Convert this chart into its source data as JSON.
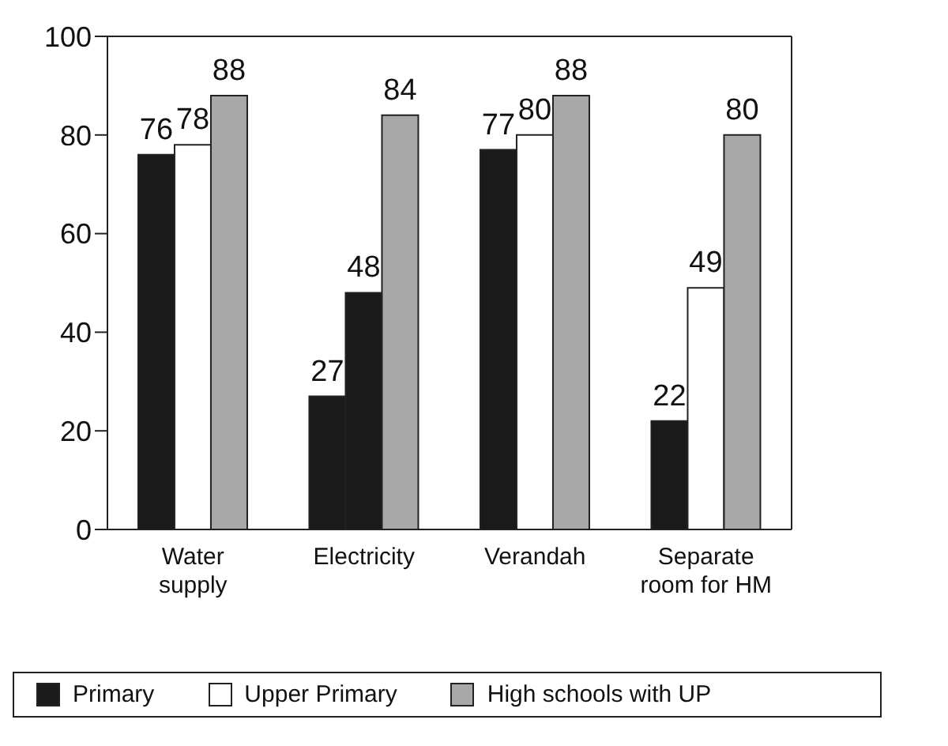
{
  "chart_data": {
    "type": "bar",
    "categories": [
      "Water supply",
      "Electricity",
      "Verandah",
      "Separate room for HM"
    ],
    "series": [
      {
        "name": "Primary",
        "color": "#1a1a1a",
        "values": [
          76,
          27,
          77,
          22
        ]
      },
      {
        "name": "Upper Primary",
        "color": "#ffffff",
        "colors": [
          "#ffffff",
          "#1a1a1a",
          "#ffffff",
          "#ffffff"
        ],
        "values": [
          78,
          48,
          80,
          49
        ]
      },
      {
        "name": "High schools with UP",
        "color": "#a8a8a8",
        "values": [
          88,
          84,
          88,
          80
        ]
      }
    ],
    "ylim": [
      0,
      100
    ],
    "yticks": [
      0,
      20,
      40,
      60,
      80,
      100
    ],
    "grid": false,
    "legend": "bottom",
    "data_labels": true
  }
}
